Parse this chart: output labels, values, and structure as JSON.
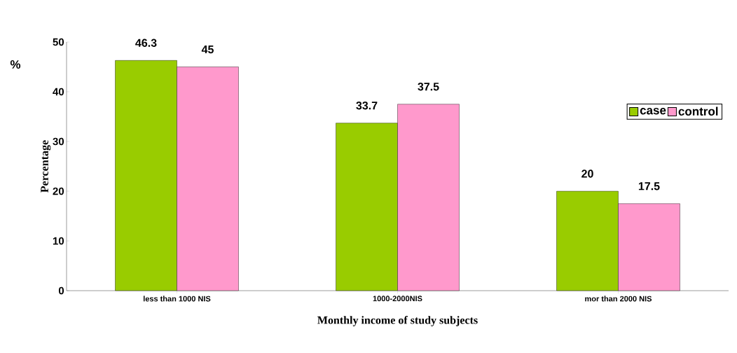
{
  "chart_data": {
    "type": "bar",
    "xlabel": "Monthly income of study subjects",
    "ylabel": "Percentage",
    "annotations": [
      "%"
    ],
    "categories": [
      "less than 1000 NIS",
      "1000-2000NIS",
      "mor than 2000 NIS"
    ],
    "series": [
      {
        "name": "case",
        "color": "#99cc00",
        "values": [
          46.3,
          33.7,
          20
        ]
      },
      {
        "name": "control",
        "color": "#ff99cc",
        "values": [
          45,
          37.5,
          17.5
        ]
      }
    ],
    "ylim": [
      0,
      50
    ],
    "yticks": [
      0,
      10,
      20,
      30,
      40,
      50
    ],
    "data_labels": true,
    "legend": "right",
    "grid": false
  }
}
